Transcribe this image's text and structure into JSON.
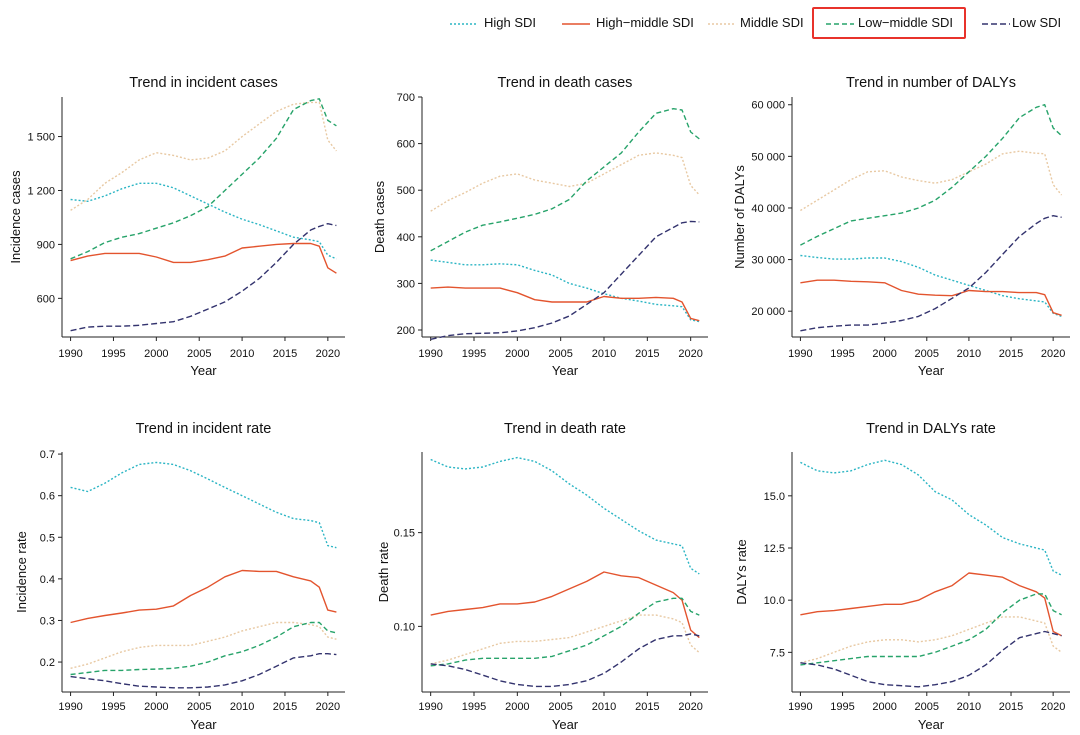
{
  "legend": {
    "items": [
      {
        "label": "High SDI",
        "color": "#2bb5c4",
        "dash": "2,2"
      },
      {
        "label": "High−middle SDI",
        "color": "#e3542e",
        "dash": ""
      },
      {
        "label": "Middle SDI",
        "color": "#e8c9a3",
        "dash": "2,2"
      },
      {
        "label": "Low−middle SDI",
        "color": "#27a36a",
        "dash": "5,3",
        "highlighted": true
      },
      {
        "label": "Low SDI",
        "color": "#33336e",
        "dash": "6,3"
      }
    ]
  },
  "chart_data": [
    {
      "type": "line",
      "title": "Trend in incident cases",
      "xlabel": "Year",
      "ylabel": "Incidence cases",
      "xlim": [
        1989,
        2022
      ],
      "ylim": [
        385,
        1720
      ],
      "xticks": [
        1990,
        1995,
        2000,
        2005,
        2010,
        2015,
        2020
      ],
      "yticks": [
        600,
        900,
        1200,
        1500
      ],
      "yticklabels": [
        "600",
        "900",
        "1 200",
        "1 500"
      ],
      "x": [
        1990,
        1992,
        1994,
        1996,
        1998,
        2000,
        2002,
        2004,
        2006,
        2008,
        2010,
        2012,
        2014,
        2016,
        2018,
        2019,
        2020,
        2021
      ],
      "series": [
        {
          "name": "High SDI",
          "values": [
            1150,
            1140,
            1170,
            1210,
            1240,
            1240,
            1215,
            1170,
            1125,
            1080,
            1040,
            1010,
            975,
            940,
            925,
            915,
            840,
            820
          ]
        },
        {
          "name": "High−middle SDI",
          "values": [
            810,
            835,
            850,
            850,
            850,
            830,
            800,
            800,
            815,
            835,
            880,
            890,
            900,
            905,
            905,
            890,
            770,
            740
          ]
        },
        {
          "name": "Middle SDI",
          "values": [
            1090,
            1150,
            1240,
            1300,
            1370,
            1410,
            1395,
            1370,
            1380,
            1420,
            1500,
            1570,
            1640,
            1680,
            1690,
            1690,
            1480,
            1420
          ]
        },
        {
          "name": "Low−middle SDI",
          "values": [
            820,
            860,
            910,
            940,
            960,
            990,
            1020,
            1060,
            1110,
            1200,
            1290,
            1380,
            1490,
            1650,
            1700,
            1710,
            1590,
            1560
          ]
        },
        {
          "name": "Low SDI",
          "values": [
            420,
            440,
            445,
            445,
            450,
            460,
            470,
            500,
            540,
            580,
            640,
            710,
            800,
            900,
            980,
            1000,
            1015,
            1005
          ]
        }
      ]
    },
    {
      "type": "line",
      "title": "Trend in death cases",
      "xlabel": "Year",
      "ylabel": "Death cases",
      "xlim": [
        1989,
        2022
      ],
      "ylim": [
        185,
        700
      ],
      "xticks": [
        1990,
        1995,
        2000,
        2005,
        2010,
        2015,
        2020
      ],
      "yticks": [
        200,
        300,
        400,
        500,
        600,
        700
      ],
      "yticklabels": [
        "200",
        "300",
        "400",
        "500",
        "600",
        "700"
      ],
      "x": [
        1990,
        1992,
        1994,
        1996,
        1998,
        2000,
        2002,
        2004,
        2006,
        2008,
        2010,
        2012,
        2014,
        2016,
        2018,
        2019,
        2020,
        2021
      ],
      "series": [
        {
          "name": "High SDI",
          "values": [
            350,
            345,
            340,
            340,
            342,
            340,
            328,
            318,
            300,
            290,
            278,
            268,
            262,
            255,
            252,
            250,
            222,
            218
          ]
        },
        {
          "name": "High−middle SDI",
          "values": [
            290,
            292,
            290,
            290,
            290,
            280,
            265,
            260,
            260,
            260,
            272,
            268,
            268,
            270,
            268,
            260,
            225,
            220
          ]
        },
        {
          "name": "Middle SDI",
          "values": [
            455,
            478,
            495,
            515,
            530,
            535,
            522,
            515,
            508,
            515,
            535,
            555,
            575,
            580,
            575,
            570,
            510,
            490
          ]
        },
        {
          "name": "Low−middle SDI",
          "values": [
            370,
            390,
            410,
            425,
            432,
            440,
            448,
            460,
            480,
            520,
            550,
            580,
            625,
            665,
            675,
            672,
            625,
            610
          ]
        },
        {
          "name": "Low SDI",
          "values": [
            180,
            188,
            192,
            193,
            194,
            198,
            205,
            215,
            230,
            255,
            280,
            320,
            360,
            400,
            420,
            430,
            433,
            432
          ]
        }
      ]
    },
    {
      "type": "line",
      "title": "Trend in number of DALYs",
      "xlabel": "Year",
      "ylabel": "Number of DALYs",
      "xlim": [
        1989,
        2022
      ],
      "ylim": [
        15000,
        61500
      ],
      "xticks": [
        1990,
        1995,
        2000,
        2005,
        2010,
        2015,
        2020
      ],
      "yticks": [
        20000,
        30000,
        40000,
        50000,
        60000
      ],
      "yticklabels": [
        "20 000",
        "30 000",
        "40 000",
        "50 000",
        "60 000"
      ],
      "x": [
        1990,
        1992,
        1994,
        1996,
        1998,
        2000,
        2002,
        2004,
        2006,
        2008,
        2010,
        2012,
        2014,
        2016,
        2018,
        2019,
        2020,
        2021
      ],
      "series": [
        {
          "name": "High SDI",
          "values": [
            30800,
            30400,
            30100,
            30100,
            30300,
            30300,
            29600,
            28500,
            27000,
            26000,
            25000,
            24000,
            23000,
            22400,
            22000,
            21800,
            19600,
            19000
          ]
        },
        {
          "name": "High−middle SDI",
          "values": [
            25500,
            26000,
            26000,
            25800,
            25700,
            25500,
            24000,
            23300,
            23100,
            23000,
            24000,
            23800,
            23800,
            23600,
            23600,
            23200,
            19700,
            19200
          ]
        },
        {
          "name": "Middle SDI",
          "values": [
            39500,
            41500,
            43500,
            45500,
            47000,
            47200,
            46000,
            45300,
            44800,
            45500,
            47000,
            48500,
            50500,
            51000,
            50600,
            50500,
            44500,
            42500
          ]
        },
        {
          "name": "Low−middle SDI",
          "values": [
            32800,
            34500,
            36000,
            37500,
            38000,
            38500,
            39000,
            40000,
            41500,
            44000,
            47000,
            50000,
            53500,
            57500,
            59500,
            60000,
            55500,
            54000
          ]
        },
        {
          "name": "Low SDI",
          "values": [
            16200,
            16800,
            17100,
            17300,
            17300,
            17700,
            18200,
            19000,
            20500,
            22500,
            24500,
            27500,
            31000,
            34500,
            37000,
            38000,
            38500,
            38200
          ]
        }
      ]
    },
    {
      "type": "line",
      "title": "Trend in incident rate",
      "xlabel": "Year",
      "ylabel": "Incidence rate",
      "xlim": [
        1989,
        2022
      ],
      "ylim": [
        0.128,
        0.705
      ],
      "xticks": [
        1990,
        1995,
        2000,
        2005,
        2010,
        2015,
        2020
      ],
      "yticks": [
        0.2,
        0.3,
        0.4,
        0.5,
        0.6,
        0.7
      ],
      "yticklabels": [
        "0.2",
        "0.3",
        "0.4",
        "0.5",
        "0.6",
        "0.7"
      ],
      "x": [
        1990,
        1992,
        1994,
        1996,
        1998,
        2000,
        2002,
        2004,
        2006,
        2008,
        2010,
        2012,
        2014,
        2016,
        2018,
        2019,
        2020,
        2021
      ],
      "series": [
        {
          "name": "High SDI",
          "values": [
            0.62,
            0.61,
            0.63,
            0.655,
            0.675,
            0.68,
            0.675,
            0.66,
            0.64,
            0.62,
            0.6,
            0.58,
            0.56,
            0.545,
            0.54,
            0.535,
            0.48,
            0.475
          ]
        },
        {
          "name": "High−middle SDI",
          "values": [
            0.295,
            0.305,
            0.312,
            0.318,
            0.325,
            0.327,
            0.335,
            0.36,
            0.38,
            0.405,
            0.42,
            0.418,
            0.418,
            0.405,
            0.395,
            0.38,
            0.325,
            0.32
          ]
        },
        {
          "name": "Middle SDI",
          "values": [
            0.185,
            0.195,
            0.21,
            0.225,
            0.235,
            0.24,
            0.24,
            0.24,
            0.25,
            0.26,
            0.275,
            0.285,
            0.295,
            0.295,
            0.29,
            0.285,
            0.26,
            0.255
          ]
        },
        {
          "name": "Low−middle SDI",
          "values": [
            0.17,
            0.175,
            0.18,
            0.18,
            0.182,
            0.183,
            0.185,
            0.19,
            0.2,
            0.215,
            0.225,
            0.24,
            0.26,
            0.285,
            0.295,
            0.295,
            0.275,
            0.27
          ]
        },
        {
          "name": "Low SDI",
          "values": [
            0.165,
            0.16,
            0.155,
            0.148,
            0.142,
            0.14,
            0.138,
            0.138,
            0.14,
            0.145,
            0.155,
            0.17,
            0.19,
            0.21,
            0.215,
            0.22,
            0.22,
            0.218
          ]
        }
      ]
    },
    {
      "type": "line",
      "title": "Trend in death rate",
      "xlabel": "Year",
      "ylabel": "Death rate",
      "xlim": [
        1989,
        2022
      ],
      "ylim": [
        0.065,
        0.193
      ],
      "xticks": [
        1990,
        1995,
        2000,
        2005,
        2010,
        2015,
        2020
      ],
      "yticks": [
        0.1,
        0.15
      ],
      "yticklabels": [
        "0.10",
        "0.15"
      ],
      "x": [
        1990,
        1992,
        1994,
        1996,
        1998,
        2000,
        2002,
        2004,
        2006,
        2008,
        2010,
        2012,
        2014,
        2016,
        2018,
        2019,
        2020,
        2021
      ],
      "series": [
        {
          "name": "High SDI",
          "values": [
            0.189,
            0.185,
            0.184,
            0.185,
            0.188,
            0.19,
            0.188,
            0.183,
            0.176,
            0.17,
            0.163,
            0.157,
            0.151,
            0.146,
            0.144,
            0.143,
            0.131,
            0.128
          ]
        },
        {
          "name": "High−middle SDI",
          "values": [
            0.106,
            0.108,
            0.109,
            0.11,
            0.112,
            0.112,
            0.113,
            0.116,
            0.12,
            0.124,
            0.129,
            0.127,
            0.126,
            0.122,
            0.118,
            0.114,
            0.098,
            0.094
          ]
        },
        {
          "name": "Middle SDI",
          "values": [
            0.08,
            0.082,
            0.085,
            0.088,
            0.091,
            0.092,
            0.092,
            0.093,
            0.094,
            0.097,
            0.1,
            0.103,
            0.106,
            0.106,
            0.104,
            0.102,
            0.09,
            0.086
          ]
        },
        {
          "name": "Low−middle SDI",
          "values": [
            0.079,
            0.08,
            0.082,
            0.083,
            0.083,
            0.083,
            0.083,
            0.084,
            0.087,
            0.09,
            0.095,
            0.1,
            0.107,
            0.113,
            0.115,
            0.115,
            0.108,
            0.106
          ]
        },
        {
          "name": "Low SDI",
          "values": [
            0.08,
            0.079,
            0.077,
            0.074,
            0.071,
            0.069,
            0.068,
            0.068,
            0.069,
            0.071,
            0.075,
            0.081,
            0.088,
            0.093,
            0.095,
            0.095,
            0.096,
            0.095
          ]
        }
      ]
    },
    {
      "type": "line",
      "title": "Trend in DALYs rate",
      "xlabel": "Year",
      "ylabel": "DALYs rate",
      "xlim": [
        1989,
        2022
      ],
      "ylim": [
        5.6,
        17.1
      ],
      "xticks": [
        1990,
        1995,
        2000,
        2005,
        2010,
        2015,
        2020
      ],
      "yticks": [
        7.5,
        10,
        12.5,
        15
      ],
      "yticklabels": [
        "7.5",
        "10.0",
        "12.5",
        "15.0"
      ],
      "x": [
        1990,
        1992,
        1994,
        1996,
        1998,
        2000,
        2002,
        2004,
        2006,
        2008,
        2010,
        2012,
        2014,
        2016,
        2018,
        2019,
        2020,
        2021
      ],
      "series": [
        {
          "name": "High SDI",
          "values": [
            16.6,
            16.2,
            16.1,
            16.2,
            16.5,
            16.7,
            16.5,
            16.0,
            15.2,
            14.8,
            14.1,
            13.6,
            13.0,
            12.7,
            12.5,
            12.4,
            11.4,
            11.2
          ]
        },
        {
          "name": "High−middle SDI",
          "values": [
            9.3,
            9.45,
            9.5,
            9.6,
            9.7,
            9.8,
            9.8,
            10.0,
            10.4,
            10.7,
            11.3,
            11.2,
            11.1,
            10.7,
            10.4,
            10.1,
            8.5,
            8.3
          ]
        },
        {
          "name": "Middle SDI",
          "values": [
            7.0,
            7.2,
            7.5,
            7.8,
            8.0,
            8.1,
            8.1,
            8.0,
            8.1,
            8.3,
            8.6,
            8.9,
            9.2,
            9.2,
            9.0,
            8.9,
            7.8,
            7.5
          ]
        },
        {
          "name": "Low−middle SDI",
          "values": [
            6.9,
            7.0,
            7.1,
            7.2,
            7.3,
            7.3,
            7.3,
            7.3,
            7.5,
            7.8,
            8.1,
            8.6,
            9.4,
            10.0,
            10.3,
            10.3,
            9.5,
            9.3
          ]
        },
        {
          "name": "Low SDI",
          "values": [
            7.0,
            6.9,
            6.7,
            6.4,
            6.1,
            5.95,
            5.9,
            5.85,
            5.95,
            6.1,
            6.4,
            6.9,
            7.6,
            8.2,
            8.4,
            8.5,
            8.4,
            8.3
          ]
        }
      ]
    }
  ]
}
